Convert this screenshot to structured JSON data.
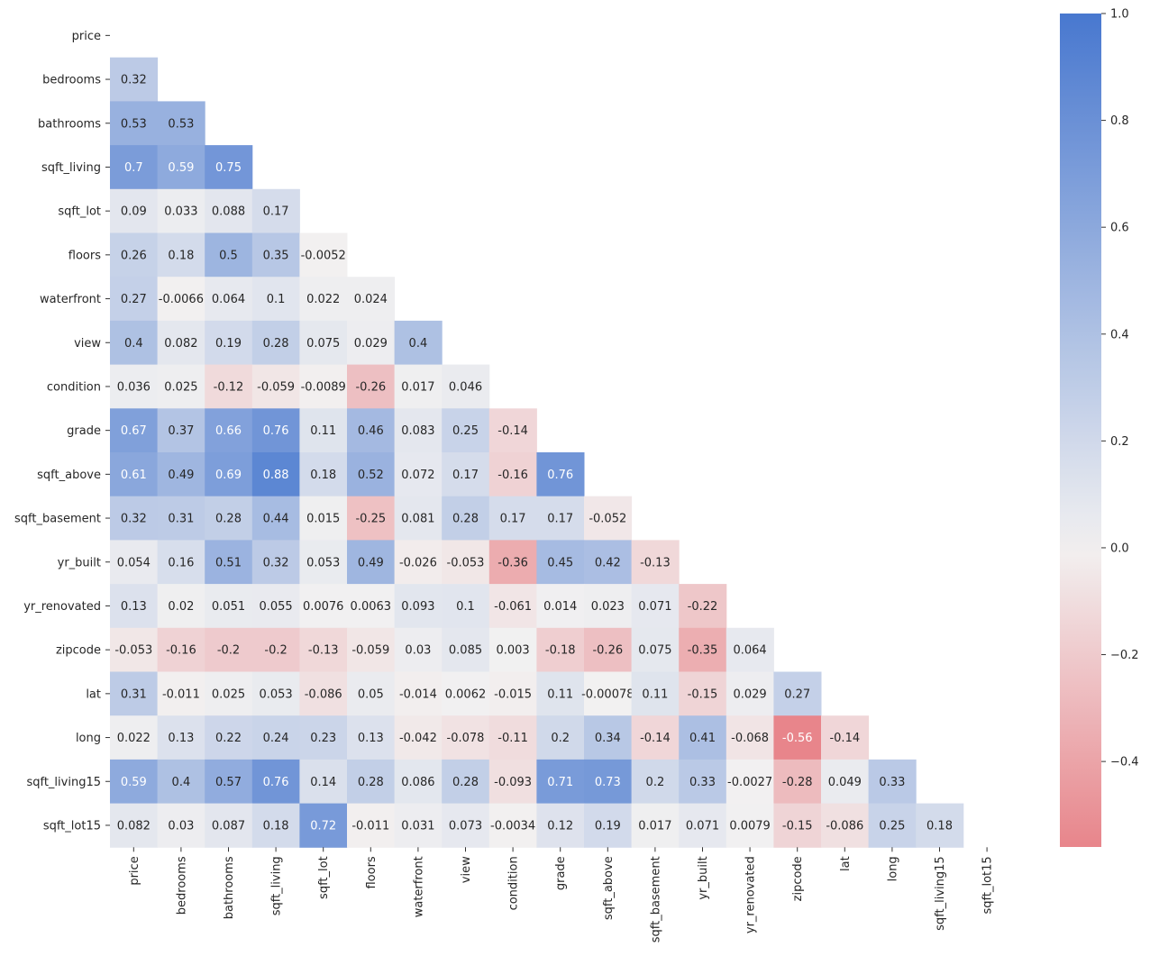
{
  "chart_data": {
    "type": "heatmap",
    "labels": [
      "price",
      "bedrooms",
      "bathrooms",
      "sqft_living",
      "sqft_lot",
      "floors",
      "waterfront",
      "view",
      "condition",
      "grade",
      "sqft_above",
      "sqft_basement",
      "yr_built",
      "yr_renovated",
      "zipcode",
      "lat",
      "long",
      "sqft_living15",
      "sqft_lot15"
    ],
    "mask": "upper-triangle",
    "matrix": [
      [],
      [
        "0.32"
      ],
      [
        "0.53",
        "0.53"
      ],
      [
        "0.7",
        "0.59",
        "0.75"
      ],
      [
        "0.09",
        "0.033",
        "0.088",
        "0.17"
      ],
      [
        "0.26",
        "0.18",
        "0.5",
        "0.35",
        "-0.0052"
      ],
      [
        "0.27",
        "-0.0066",
        "0.064",
        "0.1",
        "0.022",
        "0.024"
      ],
      [
        "0.4",
        "0.082",
        "0.19",
        "0.28",
        "0.075",
        "0.029",
        "0.4"
      ],
      [
        "0.036",
        "0.025",
        "-0.12",
        "-0.059",
        "-0.0089",
        "-0.26",
        "0.017",
        "0.046"
      ],
      [
        "0.67",
        "0.37",
        "0.66",
        "0.76",
        "0.11",
        "0.46",
        "0.083",
        "0.25",
        "-0.14"
      ],
      [
        "0.61",
        "0.49",
        "0.69",
        "0.88",
        "0.18",
        "0.52",
        "0.072",
        "0.17",
        "-0.16",
        "0.76"
      ],
      [
        "0.32",
        "0.31",
        "0.28",
        "0.44",
        "0.015",
        "-0.25",
        "0.081",
        "0.28",
        "0.17",
        "0.17",
        "-0.052"
      ],
      [
        "0.054",
        "0.16",
        "0.51",
        "0.32",
        "0.053",
        "0.49",
        "-0.026",
        "-0.053",
        "-0.36",
        "0.45",
        "0.42",
        "-0.13"
      ],
      [
        "0.13",
        "0.02",
        "0.051",
        "0.055",
        "0.0076",
        "0.0063",
        "0.093",
        "0.1",
        "-0.061",
        "0.014",
        "0.023",
        "0.071",
        "-0.22"
      ],
      [
        "-0.053",
        "-0.16",
        "-0.2",
        "-0.2",
        "-0.13",
        "-0.059",
        "0.03",
        "0.085",
        "0.003",
        "-0.18",
        "-0.26",
        "0.075",
        "-0.35",
        "0.064"
      ],
      [
        "0.31",
        "-0.011",
        "0.025",
        "0.053",
        "-0.086",
        "0.05",
        "-0.014",
        "0.0062",
        "-0.015",
        "0.11",
        "-0.00078",
        "0.11",
        "-0.15",
        "0.029",
        "0.27"
      ],
      [
        "0.022",
        "0.13",
        "0.22",
        "0.24",
        "0.23",
        "0.13",
        "-0.042",
        "-0.078",
        "-0.11",
        "0.2",
        "0.34",
        "-0.14",
        "0.41",
        "-0.068",
        "-0.56",
        "-0.14"
      ],
      [
        "0.59",
        "0.4",
        "0.57",
        "0.76",
        "0.14",
        "0.28",
        "0.086",
        "0.28",
        "-0.093",
        "0.71",
        "0.73",
        "0.2",
        "0.33",
        "-0.0027",
        "-0.28",
        "0.049",
        "0.33"
      ],
      [
        "0.082",
        "0.03",
        "0.087",
        "0.18",
        "0.72",
        "-0.011",
        "0.031",
        "0.073",
        "-0.0034",
        "0.12",
        "0.19",
        "0.017",
        "0.071",
        "0.0079",
        "-0.15",
        "-0.086",
        "0.25",
        "0.18"
      ]
    ],
    "colorbar": {
      "min": -0.56,
      "max": 1.0,
      "ticks": [
        "1.0",
        "0.8",
        "0.6",
        "0.4",
        "0.2",
        "0.0",
        "−0.2",
        "−0.4"
      ],
      "tick_values": [
        1.0,
        0.8,
        0.6,
        0.4,
        0.2,
        0.0,
        -0.2,
        -0.4
      ]
    },
    "colors": {
      "positive_end": "#4878cf",
      "neutral": "#f2f1f1",
      "negative_end": "#e8858b",
      "dark_text": "#262626",
      "light_text": "#ffffff"
    },
    "title": "",
    "xlabel": "",
    "ylabel": ""
  }
}
